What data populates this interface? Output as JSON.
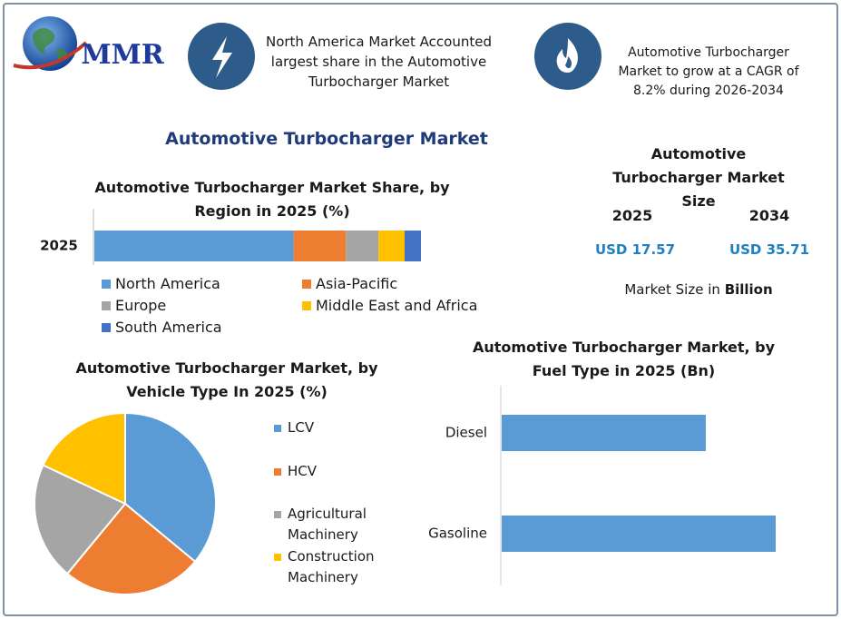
{
  "logo": "MMR",
  "highlights": [
    "North America Market Accounted largest share in the Automotive Turbocharger Market",
    "Automotive Turbocharger Market to grow at a CAGR of 8.2% during 2026-2034"
  ],
  "title": "Automotive Turbocharger Market",
  "market_size": {
    "title": "Automotive Turbocharger Market Size",
    "years": [
      "2025",
      "2034"
    ],
    "values": [
      "USD 17.57",
      "USD 35.71"
    ],
    "note": "Market Size in",
    "note_unit": "Billion"
  },
  "chart_data": [
    {
      "type": "stacked_bar",
      "title": "Automotive Turbocharger Market Share, by Region in 2025 (%)",
      "categories": [
        "2025"
      ],
      "series": [
        {
          "name": "North America",
          "color": "#5b9bd5",
          "values": [
            61
          ]
        },
        {
          "name": "Asia-Pacific",
          "color": "#ed7d31",
          "values": [
            16
          ]
        },
        {
          "name": "Europe",
          "color": "#a5a5a5",
          "values": [
            10
          ]
        },
        {
          "name": "Middle East and Africa",
          "color": "#ffc000",
          "values": [
            8
          ]
        },
        {
          "name": "South America",
          "color": "#4472c4",
          "values": [
            5
          ]
        }
      ]
    },
    {
      "type": "pie",
      "title": "Automotive Turbocharger Market, by Vehicle Type In 2025 (%)",
      "categories": [
        "LCV",
        "HCV",
        "Agricultural Machinery",
        "Construction Machinery"
      ],
      "values": [
        36,
        25,
        21,
        18
      ],
      "colors": [
        "#5b9bd5",
        "#ed7d31",
        "#a5a5a5",
        "#ffc000"
      ]
    },
    {
      "type": "bar",
      "orientation": "horizontal",
      "title": "Automotive Turbocharger Market, by Fuel Type in 2025 (Bn)",
      "categories": [
        "Diesel",
        "Gasoline"
      ],
      "values": [
        7.5,
        10.07
      ],
      "color": "#5b9bd5"
    }
  ]
}
